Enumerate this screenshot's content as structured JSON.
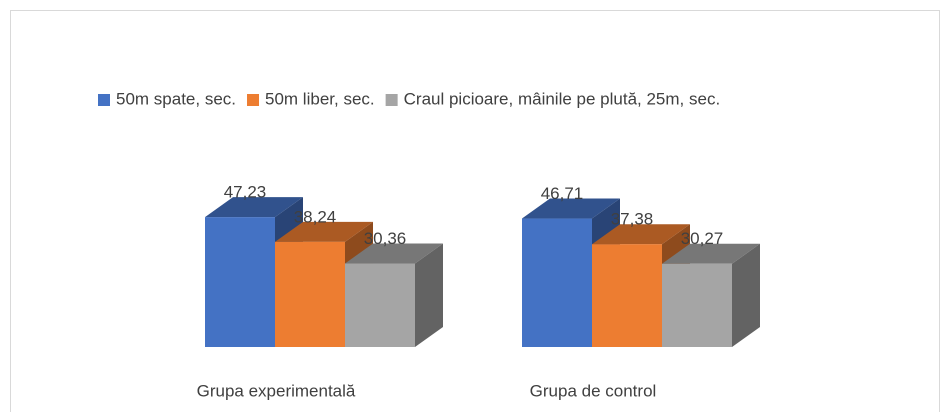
{
  "chart_data": {
    "type": "bar3d",
    "categories": [
      "Grupa experimentală",
      "Grupa de control"
    ],
    "series": [
      {
        "name": "50m spate, sec.",
        "color": "#4472c4",
        "values": [
          47.23,
          46.71
        ],
        "value_labels": [
          "47,23",
          "46,71"
        ]
      },
      {
        "name": "50m liber, sec.",
        "color": "#ed7d31",
        "values": [
          38.24,
          37.38
        ],
        "value_labels": [
          "38,24",
          "37,38"
        ]
      },
      {
        "name": "Craul picioare, mâinile pe plută, 25m, sec.",
        "color": "#a5a5a5",
        "values": [
          30.36,
          30.27
        ],
        "value_labels": [
          "30,36",
          "30,27"
        ]
      }
    ],
    "legend": "top"
  }
}
